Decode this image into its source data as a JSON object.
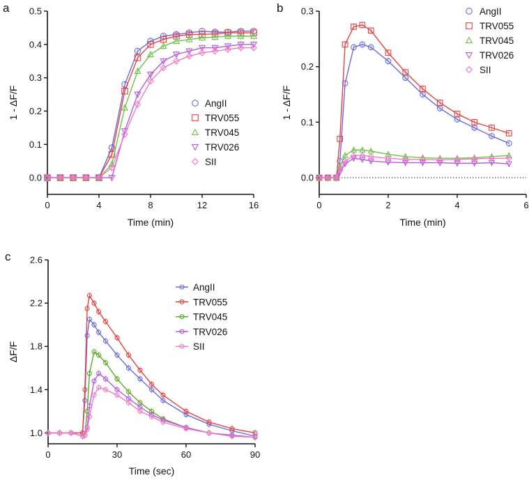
{
  "chart_data": [
    {
      "panel": "a",
      "type": "scatter",
      "xlabel": "Time (min)",
      "ylabel": "1 - ΔF/F",
      "xlim": [
        0,
        16
      ],
      "ylim": [
        -0.05,
        0.5
      ],
      "xticks": [
        0,
        4,
        8,
        12,
        16
      ],
      "yticks": [
        0.0,
        0.1,
        0.2,
        0.3,
        0.4,
        0.5
      ],
      "ytick_labels": [
        "0.0",
        "0.1",
        "0.2",
        "0.3",
        "0.4",
        "0.5"
      ],
      "legend_position": "center-right",
      "x": [
        0,
        1,
        2,
        3,
        4,
        5,
        6,
        7,
        8,
        9,
        10,
        11,
        12,
        13,
        14,
        15,
        16
      ],
      "series": [
        {
          "name": "AngII",
          "color": "#6a6ae0",
          "marker": "circle",
          "values": [
            0,
            0,
            0,
            0,
            0,
            0.09,
            0.28,
            0.38,
            0.41,
            0.425,
            0.43,
            0.435,
            0.44,
            0.437,
            0.437,
            0.44,
            0.44
          ]
        },
        {
          "name": "TRV055",
          "color": "#e8403e",
          "marker": "square",
          "values": [
            0,
            0,
            0,
            0,
            0,
            0.07,
            0.26,
            0.36,
            0.4,
            0.415,
            0.425,
            0.43,
            0.43,
            0.432,
            0.435,
            0.435,
            0.435
          ]
        },
        {
          "name": "TRV045",
          "color": "#6cc24a",
          "marker": "triangle",
          "values": [
            0,
            0,
            0,
            0,
            0,
            0.04,
            0.21,
            0.32,
            0.37,
            0.395,
            0.41,
            0.415,
            0.42,
            0.422,
            0.425,
            0.425,
            0.425
          ]
        },
        {
          "name": "TRV026",
          "color": "#b45ae0",
          "marker": "triangle-down",
          "values": [
            0,
            0,
            0,
            0,
            0,
            0,
            0.14,
            0.25,
            0.31,
            0.35,
            0.37,
            0.38,
            0.39,
            0.39,
            0.395,
            0.4,
            0.4
          ]
        },
        {
          "name": "SII",
          "color": "#f07ac6",
          "marker": "diamond",
          "values": [
            0,
            0,
            0,
            0,
            0,
            0.03,
            0.13,
            0.22,
            0.29,
            0.33,
            0.35,
            0.365,
            0.375,
            0.38,
            0.385,
            0.39,
            0.39
          ]
        }
      ]
    },
    {
      "panel": "b",
      "type": "scatter",
      "xlabel": "Time (min)",
      "ylabel": "1 - ΔF/F",
      "xlim": [
        0,
        6
      ],
      "ylim": [
        -0.03,
        0.3
      ],
      "xticks": [
        0,
        2,
        4,
        6
      ],
      "yticks": [
        0.0,
        0.1,
        0.2,
        0.3
      ],
      "ytick_labels": [
        "0.0",
        "0.1",
        "0.2",
        "0.3"
      ],
      "zero_line": true,
      "legend_position": "top-right",
      "x": [
        0,
        0.25,
        0.5,
        0.6,
        0.75,
        1,
        1.25,
        1.5,
        2,
        2.5,
        3,
        3.5,
        4,
        4.5,
        5,
        5.5
      ],
      "series": [
        {
          "name": "AngII",
          "color": "#6a6ae0",
          "marker": "circle",
          "values": [
            0,
            0,
            0,
            0.03,
            0.17,
            0.235,
            0.24,
            0.235,
            0.21,
            0.18,
            0.15,
            0.125,
            0.105,
            0.09,
            0.075,
            0.062
          ]
        },
        {
          "name": "TRV055",
          "color": "#e8403e",
          "marker": "square",
          "values": [
            0,
            0,
            0,
            0.07,
            0.24,
            0.272,
            0.275,
            0.265,
            0.225,
            0.19,
            0.16,
            0.135,
            0.115,
            0.1,
            0.09,
            0.08
          ]
        },
        {
          "name": "TRV045",
          "color": "#6cc24a",
          "marker": "triangle",
          "values": [
            0,
            0,
            0,
            0.02,
            0.04,
            0.05,
            0.05,
            0.048,
            0.042,
            0.038,
            0.036,
            0.035,
            0.035,
            0.036,
            0.038,
            0.04
          ]
        },
        {
          "name": "TRV026",
          "color": "#b45ae0",
          "marker": "triangle-down",
          "values": [
            0,
            0,
            0,
            0.01,
            0.025,
            0.035,
            0.033,
            0.03,
            0.028,
            0.027,
            0.027,
            0.027,
            0.026,
            0.026,
            0.027,
            0.025
          ]
        },
        {
          "name": "SII",
          "color": "#f07ac6",
          "marker": "diamond",
          "values": [
            0,
            0,
            0,
            0.015,
            0.03,
            0.04,
            0.04,
            0.038,
            0.035,
            0.033,
            0.033,
            0.032,
            0.033,
            0.034,
            0.035,
            0.035
          ]
        }
      ]
    },
    {
      "panel": "c",
      "type": "line",
      "xlabel": "Time (sec)",
      "ylabel": "ΔF/F",
      "xlim": [
        0,
        90
      ],
      "ylim": [
        0.9,
        2.6
      ],
      "xticks": [
        0,
        30,
        60,
        90
      ],
      "yticks": [
        1.0,
        1.4,
        1.8,
        2.2,
        2.6
      ],
      "ytick_labels": [
        "1.0",
        "1.4",
        "1.8",
        "2.2",
        "2.6"
      ],
      "legend_position": "top-right",
      "x": [
        0,
        5,
        10,
        15,
        16,
        17,
        18,
        20,
        22,
        25,
        30,
        35,
        40,
        45,
        50,
        60,
        70,
        80,
        90
      ],
      "series": [
        {
          "name": "AngII",
          "color": "#6a6ae0",
          "marker": "circle",
          "values": [
            1,
            1,
            1,
            1,
            1.3,
            1.9,
            2.05,
            2.0,
            1.93,
            1.85,
            1.72,
            1.6,
            1.5,
            1.4,
            1.3,
            1.17,
            1.08,
            1.02,
            0.97
          ]
        },
        {
          "name": "TRV055",
          "color": "#e8403e",
          "marker": "circle",
          "values": [
            1,
            1,
            1,
            1,
            1.4,
            2.15,
            2.27,
            2.2,
            2.12,
            2.03,
            1.88,
            1.72,
            1.58,
            1.45,
            1.35,
            1.2,
            1.1,
            1.04,
            1.0
          ]
        },
        {
          "name": "TRV045",
          "color": "#5aaa22",
          "marker": "circle",
          "values": [
            1,
            1,
            1,
            0.97,
            0.98,
            1.2,
            1.55,
            1.75,
            1.72,
            1.65,
            1.5,
            1.38,
            1.28,
            1.2,
            1.13,
            1.05,
            1.0,
            0.97,
            0.96
          ]
        },
        {
          "name": "TRV026",
          "color": "#b45ae0",
          "marker": "circle",
          "values": [
            1,
            1,
            1,
            0.97,
            0.98,
            1.05,
            1.25,
            1.48,
            1.55,
            1.5,
            1.4,
            1.32,
            1.24,
            1.17,
            1.12,
            1.05,
            1.0,
            0.98,
            0.96
          ]
        },
        {
          "name": "SII",
          "color": "#f07ac6",
          "marker": "circle",
          "values": [
            1,
            1,
            1,
            0.97,
            0.98,
            1.03,
            1.15,
            1.35,
            1.42,
            1.4,
            1.35,
            1.28,
            1.2,
            1.15,
            1.1,
            1.04,
            1.0,
            0.97,
            0.96
          ]
        }
      ]
    }
  ]
}
